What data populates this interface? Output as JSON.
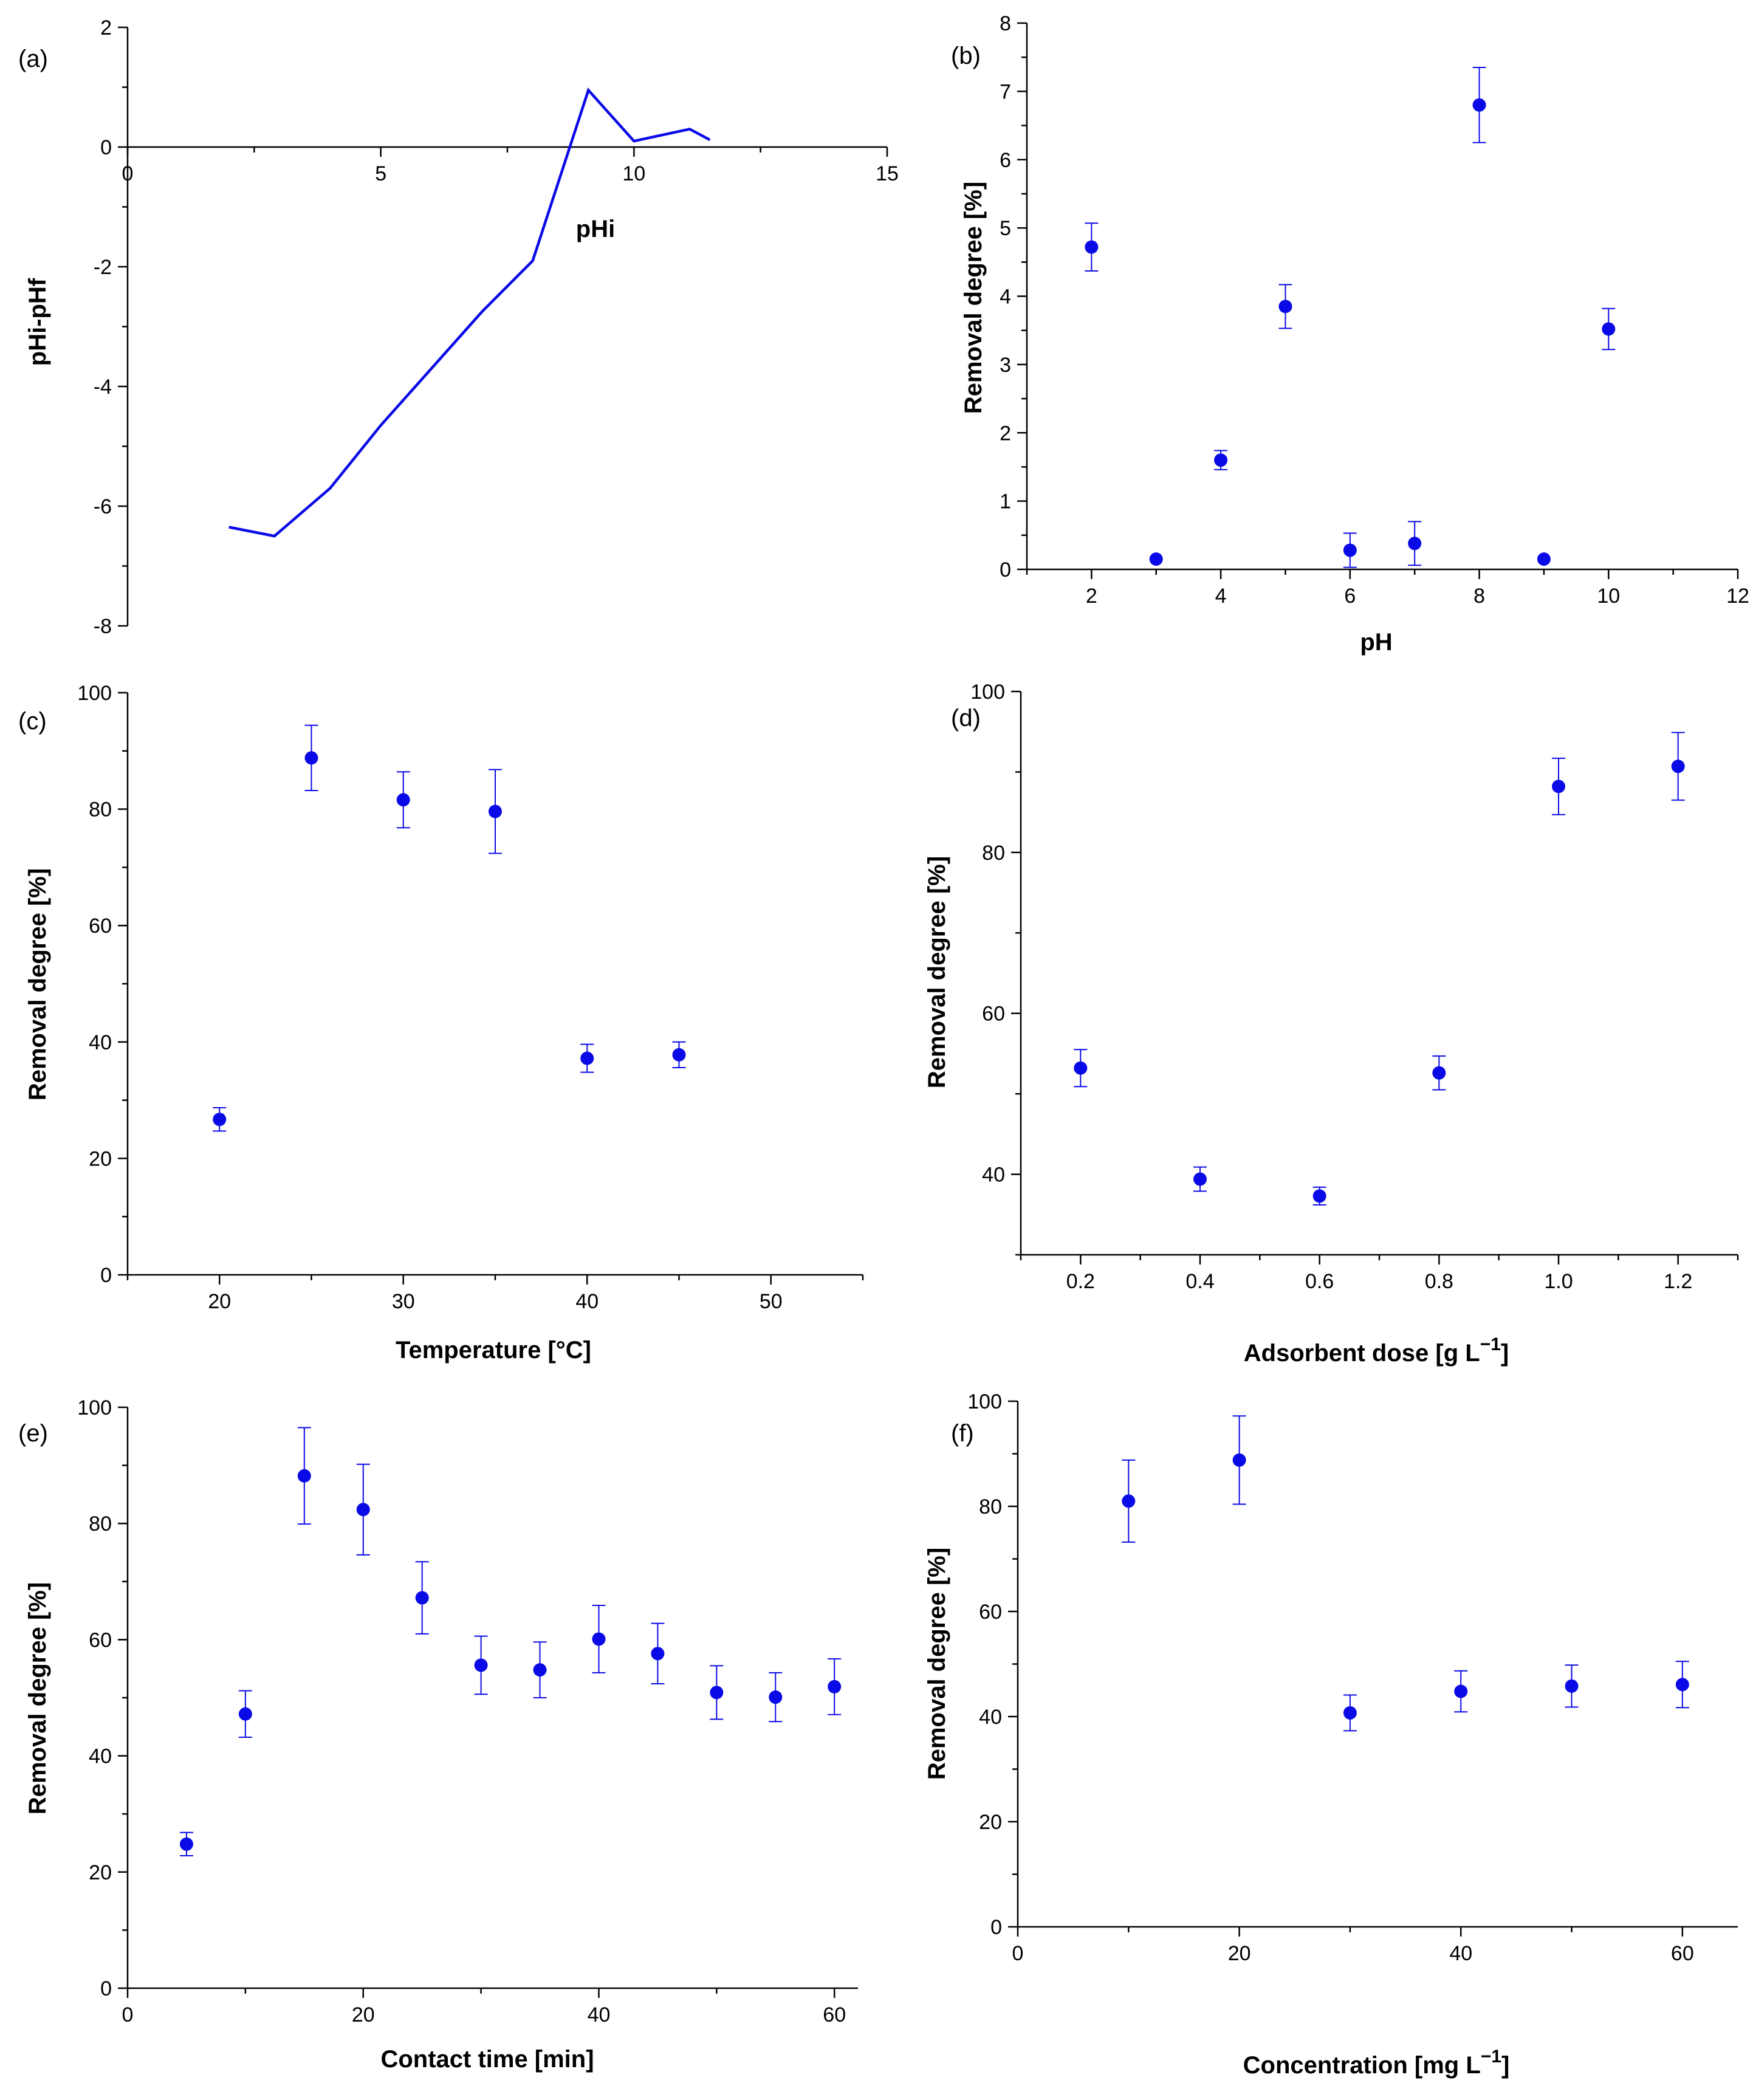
{
  "colors": {
    "series": "#0a0ae6",
    "axis": "#000000"
  },
  "chart_data": [
    {
      "panel": "a",
      "label": "(a)",
      "type": "line",
      "xlabel": "pHi",
      "ylabel": "pHi-pHf",
      "xlim": [
        0,
        15
      ],
      "ylim": [
        -8,
        2
      ],
      "x_ticks": [
        0,
        5,
        10,
        15
      ],
      "y_ticks": [
        -8,
        -6,
        -4,
        -2,
        0,
        2
      ],
      "series": [
        {
          "name": "pHi-pHf",
          "x": [
            2,
            2.9,
            4,
            5,
            6,
            7,
            8,
            9.1,
            10,
            11.1,
            11.5
          ],
          "y": [
            -6.35,
            -6.5,
            -5.7,
            -4.65,
            -3.7,
            -2.75,
            -1.9,
            0.95,
            0.1,
            0.3,
            0.12
          ]
        }
      ]
    },
    {
      "panel": "b",
      "label": "(b)",
      "type": "scatter",
      "xlabel": "pH",
      "ylabel": "Removal degree [%]",
      "xlim": [
        1,
        12
      ],
      "ylim": [
        0,
        8
      ],
      "x_ticks": [
        2,
        4,
        6,
        8,
        10,
        12
      ],
      "y_ticks": [
        0,
        1,
        2,
        3,
        4,
        5,
        6,
        7,
        8
      ],
      "series": [
        {
          "name": "Removal degree",
          "x": [
            2,
            3,
            4,
            5,
            6,
            7,
            8,
            9,
            10
          ],
          "y": [
            4.72,
            0.15,
            1.6,
            3.85,
            0.28,
            0.38,
            6.8,
            0.15,
            3.52
          ],
          "err": [
            0.35,
            0,
            0.14,
            0.32,
            0.25,
            0.32,
            0.55,
            0,
            0.3
          ]
        }
      ]
    },
    {
      "panel": "c",
      "label": "(c)",
      "type": "scatter",
      "xlabel": "Temperature [°C]",
      "ylabel": "Removal degree [%]",
      "xlim": [
        15,
        55
      ],
      "ylim": [
        0,
        100
      ],
      "x_ticks": [
        20,
        30,
        40,
        50
      ],
      "y_ticks": [
        0,
        20,
        40,
        60,
        80,
        100
      ],
      "series": [
        {
          "name": "Removal degree",
          "x": [
            20,
            25,
            30,
            35,
            40,
            45
          ],
          "y": [
            26.7,
            88.8,
            81.6,
            79.6,
            37.2,
            37.8
          ],
          "err": [
            2,
            5.6,
            4.8,
            7.2,
            2.4,
            2.2
          ]
        }
      ]
    },
    {
      "panel": "d",
      "label": "(d)",
      "type": "scatter",
      "xlabel": "Adsorbent dose [g L",
      "xlabel_sup": "−1",
      "xlabel_tail": "]",
      "ylabel": "Removal degree [%]",
      "xlim": [
        0.1,
        1.3
      ],
      "ylim": [
        30,
        100
      ],
      "x_ticks": [
        0.2,
        0.4,
        0.6,
        0.8,
        1.0,
        1.2
      ],
      "x_tick_labels": [
        "0.2",
        "0.4",
        "0.6",
        "0.8",
        "1.0",
        "1.2"
      ],
      "y_ticks": [
        40,
        60,
        80,
        100
      ],
      "series": [
        {
          "name": "Removal degree",
          "x": [
            0.2,
            0.4,
            0.6,
            0.8,
            1.0,
            1.2
          ],
          "y": [
            53.2,
            39.4,
            37.3,
            52.6,
            88.2,
            90.7
          ],
          "err": [
            2.3,
            1.5,
            1.1,
            2.1,
            3.5,
            4.2
          ]
        }
      ]
    },
    {
      "panel": "e",
      "label": "(e)",
      "type": "scatter",
      "xlabel": "Contact time [min]",
      "ylabel": "Removal degree [%]",
      "xlim": [
        0,
        62
      ],
      "ylim": [
        0,
        100
      ],
      "x_ticks": [
        0,
        20,
        40,
        60
      ],
      "y_ticks": [
        0,
        20,
        40,
        60,
        80,
        100
      ],
      "series": [
        {
          "name": "Removal degree",
          "x": [
            5,
            10,
            15,
            20,
            25,
            30,
            35,
            40,
            45,
            50,
            55,
            60
          ],
          "y": [
            24.8,
            47.2,
            88.2,
            82.4,
            67.2,
            55.6,
            54.8,
            60.1,
            57.6,
            50.9,
            50.1,
            51.9
          ],
          "err": [
            2,
            4,
            8.3,
            7.8,
            6.2,
            5,
            4.8,
            5.8,
            5.2,
            4.6,
            4.2,
            4.8
          ]
        }
      ]
    },
    {
      "panel": "f",
      "label": "(f)",
      "type": "scatter",
      "xlabel": "Concentration [mg L",
      "xlabel_sup": "−1",
      "xlabel_tail": "]",
      "ylabel": "Removal degree [%]",
      "xlim": [
        0,
        65
      ],
      "ylim": [
        0,
        100
      ],
      "x_ticks": [
        0,
        20,
        40,
        60
      ],
      "y_ticks": [
        0,
        20,
        40,
        60,
        80,
        100
      ],
      "series": [
        {
          "name": "Removal degree",
          "x": [
            10,
            20,
            30,
            40,
            50,
            60
          ],
          "y": [
            81,
            88.8,
            40.7,
            44.8,
            45.8,
            46.1
          ],
          "err": [
            7.8,
            8.4,
            3.4,
            3.9,
            4,
            4.4
          ]
        }
      ]
    }
  ]
}
